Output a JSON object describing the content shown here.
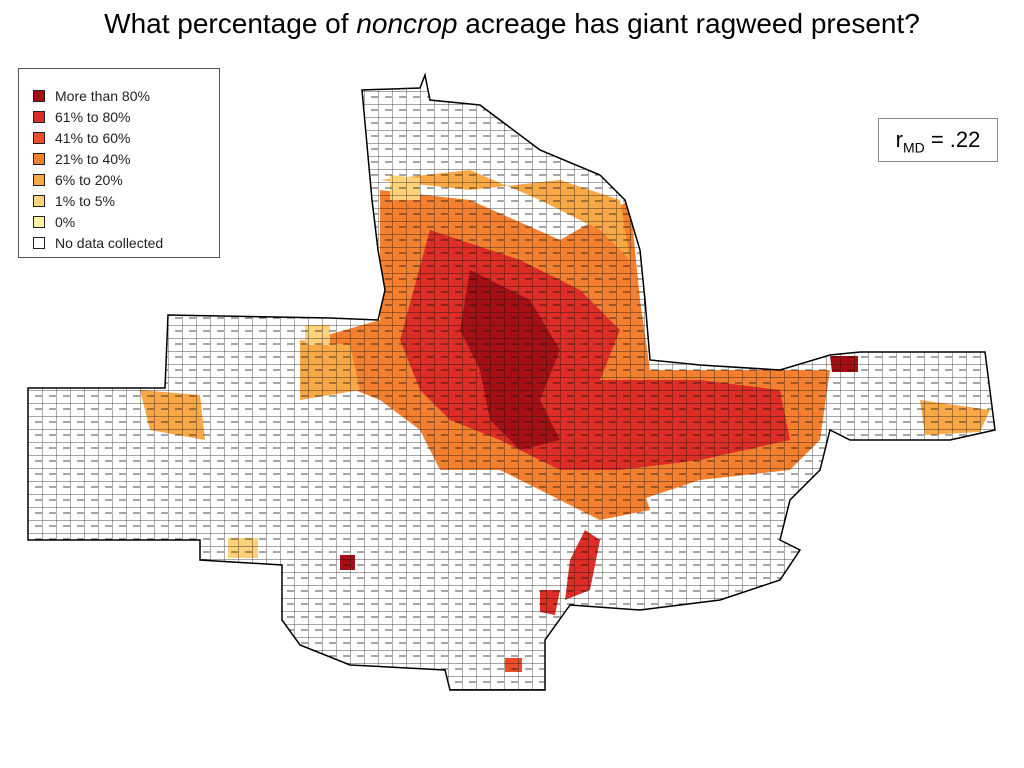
{
  "title": {
    "before": "What percentage of",
    "emphasis": "noncrop",
    "after": "acreage has giant ragweed present?"
  },
  "legend": [
    {
      "label": "More than 80%",
      "color": "#a50f15"
    },
    {
      "label": "61% to 80%",
      "color": "#de2d26"
    },
    {
      "label": "41% to 60%",
      "color": "#ef4d2a"
    },
    {
      "label": "21% to 40%",
      "color": "#f4802f"
    },
    {
      "label": "6% to 20%",
      "color": "#f9a846"
    },
    {
      "label": "1% to 5%",
      "color": "#fdd27a"
    },
    {
      "label": "0%",
      "color": "#fff3a3"
    },
    {
      "label": "No data collected",
      "color": "#ffffff"
    }
  ],
  "annotation": {
    "symbol": "r",
    "subscript": "MD",
    "text": "= .22"
  }
}
